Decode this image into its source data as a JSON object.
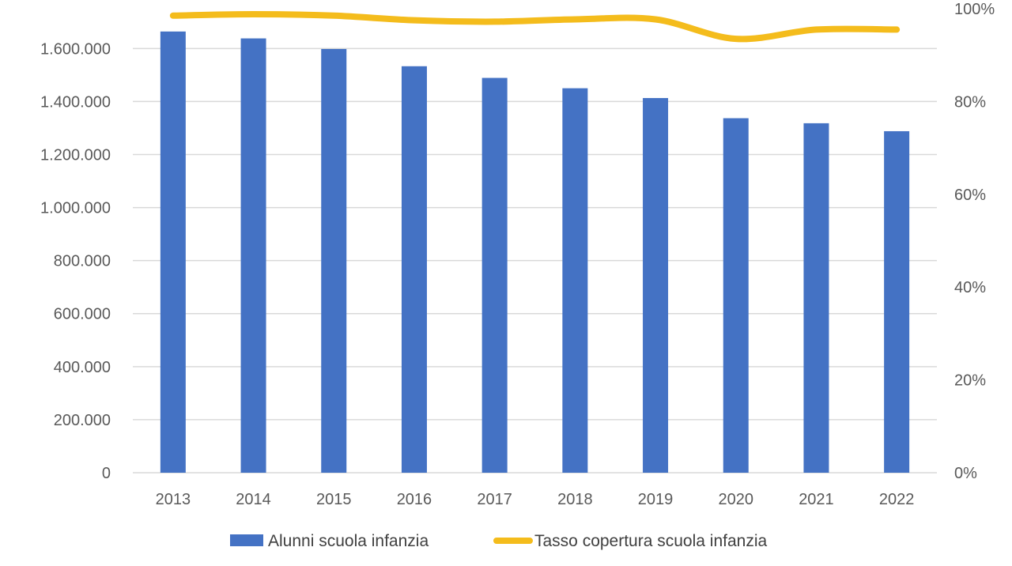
{
  "chart_data": {
    "type": "bar",
    "categories": [
      "2013",
      "2014",
      "2015",
      "2016",
      "2017",
      "2018",
      "2019",
      "2020",
      "2021",
      "2022"
    ],
    "series": [
      {
        "name": "Alunni scuola infanzia",
        "type": "bar",
        "axis": "left",
        "color": "#4472C4",
        "values": [
          1664000,
          1638000,
          1598000,
          1533000,
          1489000,
          1450000,
          1413000,
          1337000,
          1318000,
          1288000
        ]
      },
      {
        "name": "Tasso copertura scuola infanzia",
        "type": "line",
        "axis": "right",
        "color": "#F4BC1C",
        "values": [
          0.985,
          0.988,
          0.985,
          0.975,
          0.972,
          0.977,
          0.977,
          0.935,
          0.955,
          0.955
        ]
      }
    ],
    "y_left": {
      "ylim": [
        0,
        1750000
      ],
      "ticks": [
        0,
        200000,
        400000,
        600000,
        800000,
        1000000,
        1200000,
        1400000,
        1600000
      ],
      "tick_labels": [
        "0",
        "200.000",
        "400.000",
        "600.000",
        "800.000",
        "1.000.000",
        "1.200.000",
        "1.400.000",
        "1.600.000"
      ]
    },
    "y_right": {
      "ylim": [
        0,
        1
      ],
      "ticks": [
        0,
        0.2,
        0.4,
        0.6,
        0.8,
        1.0
      ],
      "tick_labels": [
        "0%",
        "20%",
        "40%",
        "60%",
        "80%",
        "100%"
      ]
    },
    "title": "",
    "xlabel": "",
    "ylabel": "",
    "grid": true,
    "legend": "bottom",
    "colors": {
      "bars": "#4472C4",
      "line": "#F4BC1C",
      "grid": "#D9D9D9",
      "tick_text": "#595959"
    }
  }
}
